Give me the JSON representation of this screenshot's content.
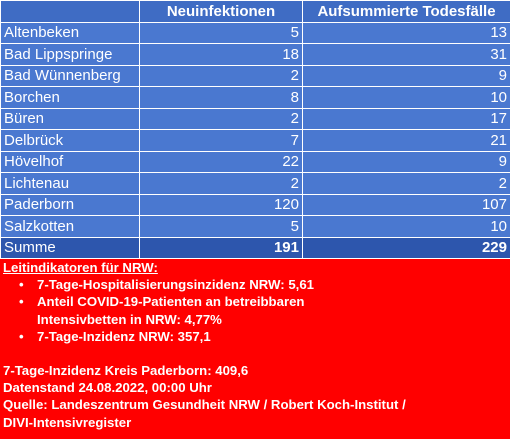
{
  "table": {
    "headers": [
      "",
      "Neuinfektionen",
      "Aufsummierte Todesfälle"
    ],
    "rows": [
      {
        "name": "Altenbeken",
        "neu": "5",
        "tote": "13"
      },
      {
        "name": "Bad Lippspringe",
        "neu": "18",
        "tote": "31"
      },
      {
        "name": "Bad Wünnenberg",
        "neu": "2",
        "tote": "9"
      },
      {
        "name": "Borchen",
        "neu": "8",
        "tote": "10"
      },
      {
        "name": "Büren",
        "neu": "2",
        "tote": "17"
      },
      {
        "name": "Delbrück",
        "neu": "7",
        "tote": "21"
      },
      {
        "name": "Hövelhof",
        "neu": "22",
        "tote": "9"
      },
      {
        "name": "Lichtenau",
        "neu": "2",
        "tote": "2"
      },
      {
        "name": "Paderborn",
        "neu": "120",
        "tote": "107"
      },
      {
        "name": "Salzkotten",
        "neu": "5",
        "tote": "10"
      }
    ],
    "total": {
      "name": "Summe",
      "neu": "191",
      "tote": "229"
    }
  },
  "info": {
    "heading": "Leitindikatoren für NRW:",
    "bullets": [
      {
        "line1": "7-Tage-Hospitalisierungsinzidenz NRW: 5,61",
        "line2": ""
      },
      {
        "line1": "Anteil COVID-19-Patienten an betreibbaren",
        "line2": "Intensivbetten in NRW: 4,77%"
      },
      {
        "line1": "7-Tage-Inzidenz NRW: 357,1",
        "line2": ""
      }
    ],
    "bullet_char": "•",
    "kreis_incidence": "7-Tage-Inzidenz Kreis Paderborn: 409,6",
    "datenstand": "Datenstand 24.08.2022, 00:00 Uhr",
    "source_line1": "Quelle: Landeszentrum Gesundheit NRW / Robert Koch-Institut /",
    "source_line2": "DIVI-Intensivregister"
  },
  "colors": {
    "header_bg": "#3f6cc4",
    "row_bg": "#4a78d0",
    "total_bg": "#2d56ad",
    "info_bg": "#ff0000",
    "text": "#ffffff"
  }
}
